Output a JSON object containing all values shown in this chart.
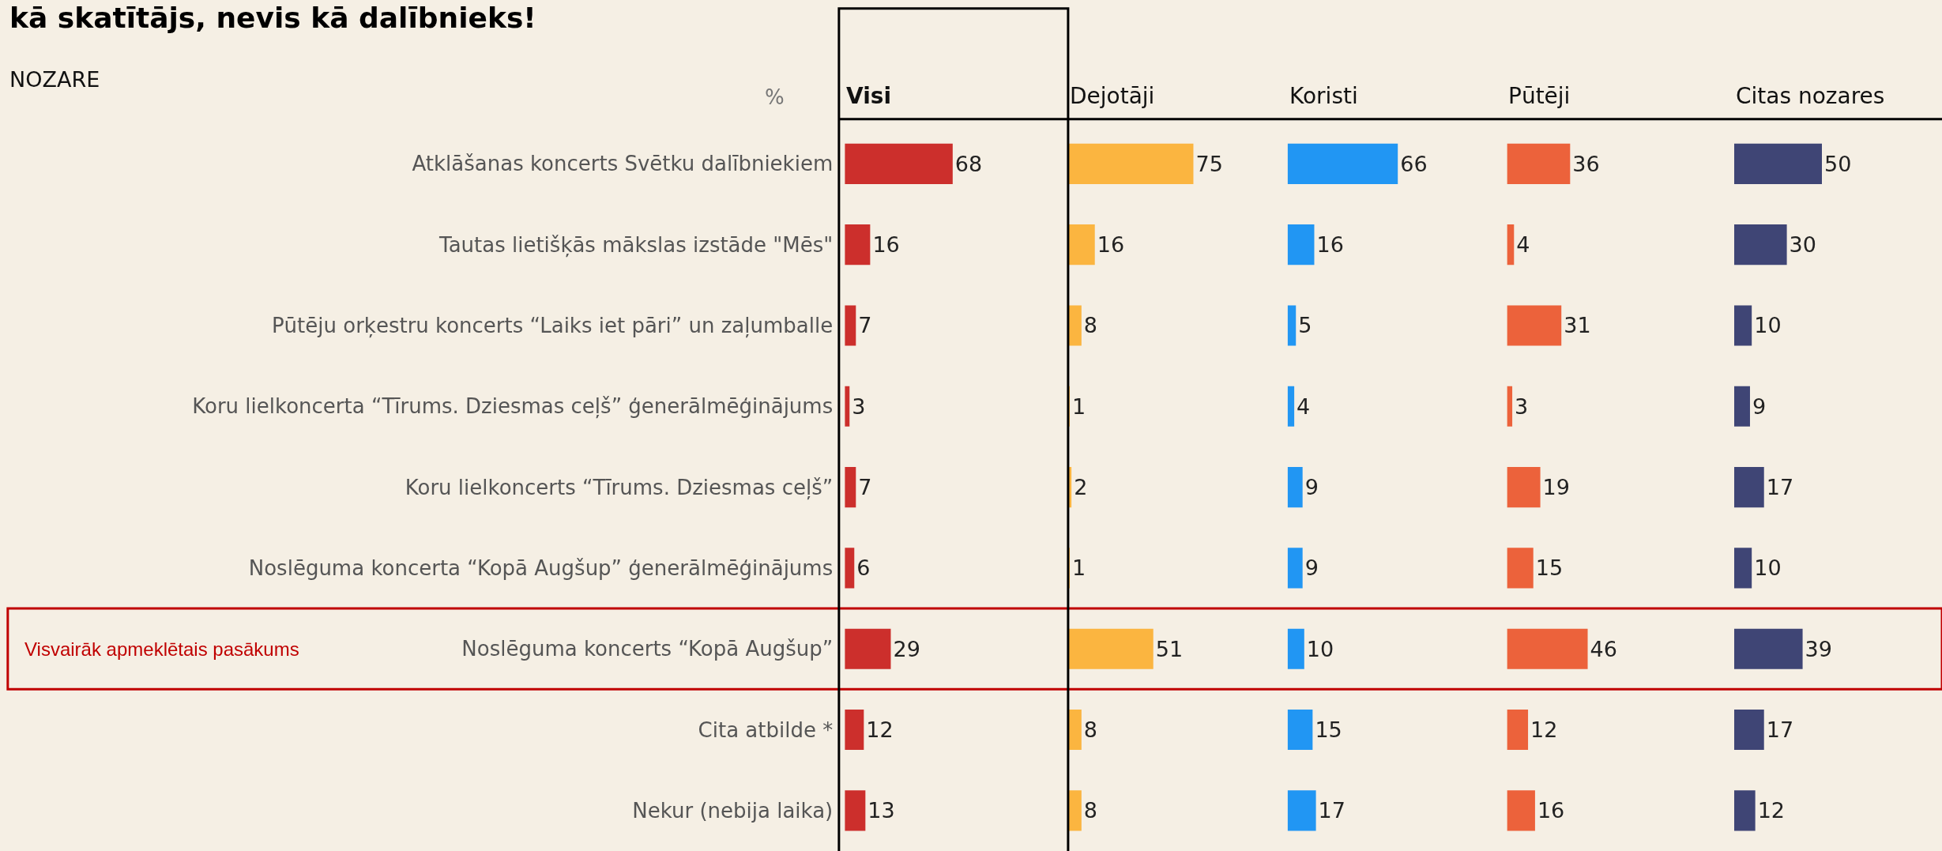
{
  "chart_data": [
    {
      "type": "bar",
      "orientation": "horizontal",
      "title": "Visi",
      "xlabel": "%",
      "ylabel": "NOZARE",
      "annotations": [
        "kā skatītājs, nevis kā dalībnieks!",
        "Visvairāk apmeklētais pasākums"
      ],
      "categories": [
        "Atklāšanas koncerts Svētku dalībniekiem",
        "Tautas lietišķās mākslas izstāde \"Mēs\"",
        "Pūtēju orķestru koncerts “Laiks iet pāri” un zaļumballe",
        "Koru lielkoncerta “Tīrums. Dziesmas ceļš” ģenerālmēģinājums",
        "Koru lielkoncerts “Tīrums. Dziesmas ceļš”",
        "Noslēguma koncerta “Kopā Augšup” ģenerālmēģinājums",
        "Noslēguma koncerts “Kopā Augšup”",
        "Cita atbilde *",
        "Nekur (nebija laika)"
      ],
      "values": [
        68,
        16,
        7,
        3,
        7,
        6,
        29,
        12,
        13
      ],
      "color": "#cc2f2c",
      "data_labels": true,
      "tick_labels": "y"
    },
    {
      "type": "bar",
      "orientation": "horizontal",
      "title": "Dejotāji",
      "categories": [
        "Atklāšanas koncerts Svētku dalībniekiem",
        "Tautas lietišķās mākslas izstāde \"Mēs\"",
        "Pūtēju orķestru koncerts “Laiks iet pāri” un zaļumballe",
        "Koru lielkoncerta “Tīrums. Dziesmas ceļš” ģenerālmēģinājums",
        "Koru lielkoncerts “Tīrums. Dziesmas ceļš”",
        "Noslēguma koncerta “Kopā Augšup” ģenerālmēģinājums",
        "Noslēguma koncerts “Kopā Augšup”",
        "Cita atbilde *",
        "Nekur (nebija laika)"
      ],
      "values": [
        75,
        16,
        8,
        1,
        2,
        1,
        51,
        8,
        8
      ],
      "color": "#fbb540",
      "data_labels": true,
      "tick_labels": false
    },
    {
      "type": "bar",
      "orientation": "horizontal",
      "title": "Koristi",
      "categories": [
        "Atklāšanas koncerts Svētku dalībniekiem",
        "Tautas lietišķās mākslas izstāde \"Mēs\"",
        "Pūtēju orķestru koncerts “Laiks iet pāri” un zaļumballe",
        "Koru lielkoncerta “Tīrums. Dziesmas ceļš” ģenerālmēģinājums",
        "Koru lielkoncerts “Tīrums. Dziesmas ceļš”",
        "Noslēguma koncerta “Kopā Augšup” ģenerālmēģinājums",
        "Noslēguma koncerts “Kopā Augšup”",
        "Cita atbilde *",
        "Nekur (nebija laika)"
      ],
      "values": [
        66,
        16,
        5,
        4,
        9,
        9,
        10,
        15,
        17
      ],
      "color": "#2196f3",
      "data_labels": true,
      "tick_labels": false
    },
    {
      "type": "bar",
      "orientation": "horizontal",
      "title": "Pūtēji",
      "categories": [
        "Atklāšanas koncerts Svētku dalībniekiem",
        "Tautas lietišķās mākslas izstāde \"Mēs\"",
        "Pūtēju orķestru koncerts “Laiks iet pāri” un zaļumballe",
        "Koru lielkoncerta “Tīrums. Dziesmas ceļš” ģenerālmēģinājums",
        "Koru lielkoncerts “Tīrums. Dziesmas ceļš”",
        "Noslēguma koncerta “Kopā Augšup” ģenerālmēģinājums",
        "Noslēguma koncerts “Kopā Augšup”",
        "Cita atbilde *",
        "Nekur (nebija laika)"
      ],
      "values": [
        36,
        4,
        31,
        3,
        19,
        15,
        46,
        12,
        16
      ],
      "color": "#ec623b",
      "data_labels": true,
      "tick_labels": false
    },
    {
      "type": "bar",
      "orientation": "horizontal",
      "title": "Citas nozares",
      "categories": [
        "Atklāšanas koncerts Svētku dalībniekiem",
        "Tautas lietišķās mākslas izstāde \"Mēs\"",
        "Pūtēju orķestru koncerts “Laiks iet pāri” un zaļumballe",
        "Koru lielkoncerta “Tīrums. Dziesmas ceļš” ģenerālmēģinājums",
        "Koru lielkoncerts “Tīrums. Dziesmas ceļš”",
        "Noslēguma koncerta “Kopā Augšup” ģenerālmēģinājums",
        "Noslēguma koncerts “Kopā Augšup”",
        "Cita atbilde *",
        "Nekur (nebija laika)"
      ],
      "values": [
        50,
        30,
        10,
        9,
        17,
        10,
        39,
        17,
        12
      ],
      "color": "#3f4575",
      "data_labels": true,
      "tick_labels": false
    }
  ]
}
